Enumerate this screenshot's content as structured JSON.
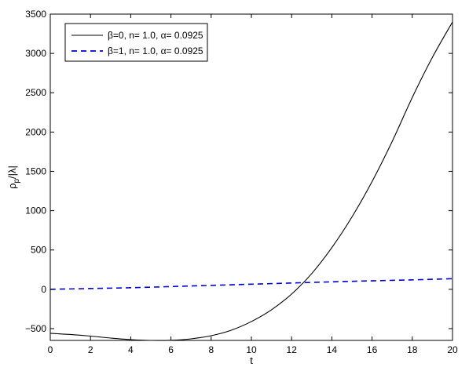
{
  "chart_data": {
    "type": "line",
    "xlabel": "t",
    "ylabel": "ρp/|λ|",
    "ylabel_main": "ρ",
    "ylabel_sub": "p",
    "ylabel_rest": "/|λ|",
    "xlim": [
      0,
      20
    ],
    "ylim": [
      -650,
      3500
    ],
    "xticks": [
      0,
      2,
      4,
      6,
      8,
      10,
      12,
      14,
      16,
      18,
      20
    ],
    "yticks": [
      -500,
      0,
      500,
      1000,
      1500,
      2000,
      2500,
      3000,
      3500
    ],
    "grid": false,
    "legend_position": "top-left",
    "series": [
      {
        "name": "β=0, n= 1.0, α= 0.0925",
        "color": "#000000",
        "style": "solid",
        "x": [
          0,
          1,
          2,
          3,
          4,
          5,
          6,
          7,
          8,
          9,
          10,
          11,
          12,
          13,
          14,
          15,
          16,
          17,
          18,
          19,
          20
        ],
        "y": [
          -560,
          -575,
          -595,
          -620,
          -640,
          -650,
          -648,
          -630,
          -590,
          -520,
          -410,
          -260,
          -60,
          200,
          530,
          920,
          1370,
          1880,
          2440,
          2950,
          3400
        ]
      },
      {
        "name": "β=1, n= 1.0, α= 0.0925",
        "color": "#0000cc",
        "style": "dashed",
        "x": [
          0,
          2,
          4,
          6,
          8,
          10,
          12,
          14,
          16,
          18,
          20
        ],
        "y": [
          0,
          10,
          20,
          35,
          50,
          65,
          80,
          95,
          108,
          120,
          135
        ]
      }
    ]
  }
}
